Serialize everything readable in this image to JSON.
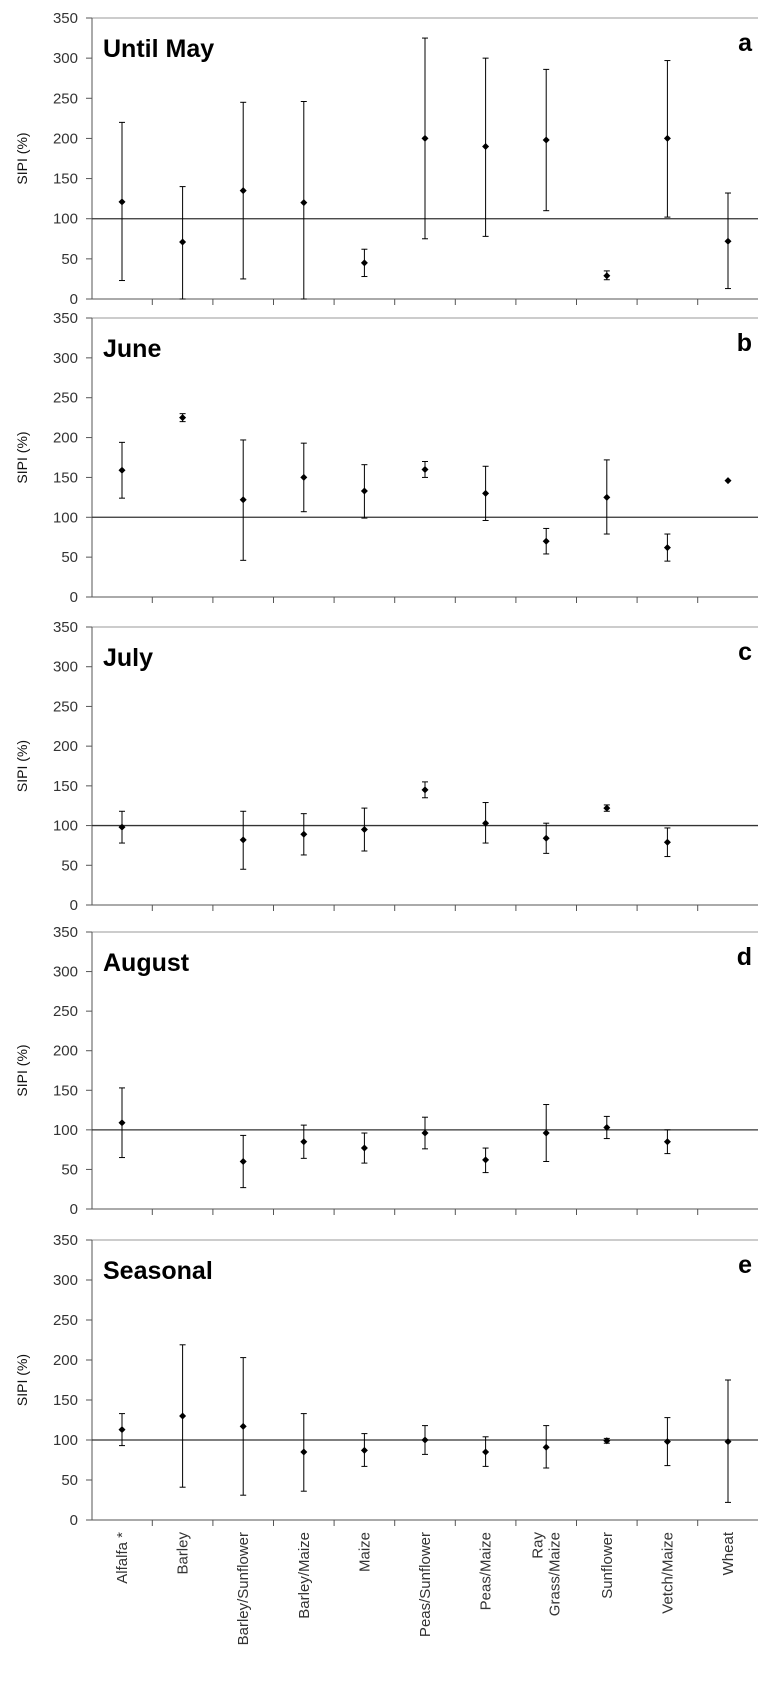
{
  "chart_data": [
    {
      "type": "scatter",
      "title": "Until May",
      "panel_label": "a",
      "ylabel": "SIPI (%)",
      "ylim": [
        0,
        350
      ],
      "yticks": [
        0,
        50,
        100,
        150,
        200,
        250,
        300,
        350
      ],
      "reference_line": 100,
      "categories": [
        "Alfalfa *",
        "Barley",
        "Barley/Sunflower",
        "Barley/Maize",
        "Maize",
        "Peas/Sunflower",
        "Peas/Maize",
        "Ray Grass/Maize",
        "Sunflower",
        "Vetch/Maize",
        "Wheat"
      ],
      "points": [
        {
          "category": "Alfalfa *",
          "value": 121,
          "low": 23,
          "high": 220
        },
        {
          "category": "Barley",
          "value": 71,
          "low": 0,
          "high": 140
        },
        {
          "category": "Barley/Sunflower",
          "value": 135,
          "low": 25,
          "high": 245
        },
        {
          "category": "Barley/Maize",
          "value": 120,
          "low": 0,
          "high": 246
        },
        {
          "category": "Maize",
          "value": 45,
          "low": 28,
          "high": 62
        },
        {
          "category": "Peas/Sunflower",
          "value": 200,
          "low": 75,
          "high": 325
        },
        {
          "category": "Peas/Maize",
          "value": 190,
          "low": 78,
          "high": 300
        },
        {
          "category": "Ray Grass/Maize",
          "value": 198,
          "low": 110,
          "high": 286
        },
        {
          "category": "Sunflower",
          "value": 29,
          "low": 24,
          "high": 35
        },
        {
          "category": "Vetch/Maize",
          "value": 200,
          "low": 102,
          "high": 297
        },
        {
          "category": "Wheat",
          "value": 72,
          "low": 13,
          "high": 132
        }
      ]
    },
    {
      "type": "scatter",
      "title": "June",
      "panel_label": "b",
      "ylabel": "SIPI (%)",
      "ylim": [
        0,
        350
      ],
      "yticks": [
        0,
        50,
        100,
        150,
        200,
        250,
        300,
        350
      ],
      "reference_line": 100,
      "categories": [
        "Alfalfa *",
        "Barley",
        "Barley/Sunflower",
        "Barley/Maize",
        "Maize",
        "Peas/Sunflower",
        "Peas/Maize",
        "Ray Grass/Maize",
        "Sunflower",
        "Vetch/Maize",
        "Wheat"
      ],
      "points": [
        {
          "category": "Alfalfa *",
          "value": 159,
          "low": 124,
          "high": 194
        },
        {
          "category": "Barley",
          "value": 225,
          "low": 220,
          "high": 230
        },
        {
          "category": "Barley/Sunflower",
          "value": 122,
          "low": 46,
          "high": 197
        },
        {
          "category": "Barley/Maize",
          "value": 150,
          "low": 107,
          "high": 193
        },
        {
          "category": "Maize",
          "value": 133,
          "low": 99,
          "high": 166
        },
        {
          "category": "Peas/Sunflower",
          "value": 160,
          "low": 150,
          "high": 170
        },
        {
          "category": "Peas/Maize",
          "value": 130,
          "low": 96,
          "high": 164
        },
        {
          "category": "Ray Grass/Maize",
          "value": 70,
          "low": 54,
          "high": 86
        },
        {
          "category": "Sunflower",
          "value": 125,
          "low": 79,
          "high": 172
        },
        {
          "category": "Vetch/Maize",
          "value": 62,
          "low": 45,
          "high": 79
        },
        {
          "category": "Wheat",
          "value": 146,
          "low": 146,
          "high": 146
        }
      ]
    },
    {
      "type": "scatter",
      "title": "July",
      "panel_label": "c",
      "ylabel": "SIPI (%)",
      "ylim": [
        0,
        350
      ],
      "yticks": [
        0,
        50,
        100,
        150,
        200,
        250,
        300,
        350
      ],
      "reference_line": 100,
      "categories": [
        "Alfalfa *",
        "Barley",
        "Barley/Sunflower",
        "Barley/Maize",
        "Maize",
        "Peas/Sunflower",
        "Peas/Maize",
        "Ray Grass/Maize",
        "Sunflower",
        "Vetch/Maize",
        "Wheat"
      ],
      "points": [
        {
          "category": "Alfalfa *",
          "value": 98,
          "low": 78,
          "high": 118
        },
        {
          "category": "Barley/Sunflower",
          "value": 82,
          "low": 45,
          "high": 118
        },
        {
          "category": "Barley/Maize",
          "value": 89,
          "low": 63,
          "high": 115
        },
        {
          "category": "Maize",
          "value": 95,
          "low": 68,
          "high": 122
        },
        {
          "category": "Peas/Sunflower",
          "value": 145,
          "low": 135,
          "high": 155
        },
        {
          "category": "Peas/Maize",
          "value": 103,
          "low": 78,
          "high": 129
        },
        {
          "category": "Ray Grass/Maize",
          "value": 84,
          "low": 65,
          "high": 103
        },
        {
          "category": "Sunflower",
          "value": 122,
          "low": 118,
          "high": 126
        },
        {
          "category": "Vetch/Maize",
          "value": 79,
          "low": 61,
          "high": 97
        }
      ]
    },
    {
      "type": "scatter",
      "title": "August",
      "panel_label": "d",
      "ylabel": "SIPI (%)",
      "ylim": [
        0,
        350
      ],
      "yticks": [
        0,
        50,
        100,
        150,
        200,
        250,
        300,
        350
      ],
      "reference_line": 100,
      "categories": [
        "Alfalfa *",
        "Barley",
        "Barley/Sunflower",
        "Barley/Maize",
        "Maize",
        "Peas/Sunflower",
        "Peas/Maize",
        "Ray Grass/Maize",
        "Sunflower",
        "Vetch/Maize",
        "Wheat"
      ],
      "points": [
        {
          "category": "Alfalfa *",
          "value": 109,
          "low": 65,
          "high": 153
        },
        {
          "category": "Barley/Sunflower",
          "value": 60,
          "low": 27,
          "high": 93
        },
        {
          "category": "Barley/Maize",
          "value": 85,
          "low": 64,
          "high": 106
        },
        {
          "category": "Maize",
          "value": 77,
          "low": 58,
          "high": 96
        },
        {
          "category": "Peas/Sunflower",
          "value": 96,
          "low": 76,
          "high": 116
        },
        {
          "category": "Peas/Maize",
          "value": 62,
          "low": 46,
          "high": 77
        },
        {
          "category": "Ray Grass/Maize",
          "value": 96,
          "low": 60,
          "high": 132
        },
        {
          "category": "Sunflower",
          "value": 103,
          "low": 89,
          "high": 117
        },
        {
          "category": "Vetch/Maize",
          "value": 85,
          "low": 70,
          "high": 100
        }
      ]
    },
    {
      "type": "scatter",
      "title": "Seasonal",
      "panel_label": "e",
      "ylabel": "SIPI (%)",
      "ylim": [
        0,
        350
      ],
      "yticks": [
        0,
        50,
        100,
        150,
        200,
        250,
        300,
        350
      ],
      "reference_line": 100,
      "categories": [
        "Alfalfa *",
        "Barley",
        "Barley/Sunflower",
        "Barley/Maize",
        "Maize",
        "Peas/Sunflower",
        "Peas/Maize",
        "Ray Grass/Maize",
        "Sunflower",
        "Vetch/Maize",
        "Wheat"
      ],
      "points": [
        {
          "category": "Alfalfa *",
          "value": 113,
          "low": 93,
          "high": 133
        },
        {
          "category": "Barley",
          "value": 130,
          "low": 41,
          "high": 219
        },
        {
          "category": "Barley/Sunflower",
          "value": 117,
          "low": 31,
          "high": 203
        },
        {
          "category": "Barley/Maize",
          "value": 85,
          "low": 36,
          "high": 133
        },
        {
          "category": "Maize",
          "value": 87,
          "low": 67,
          "high": 108
        },
        {
          "category": "Peas/Sunflower",
          "value": 100,
          "low": 82,
          "high": 118
        },
        {
          "category": "Peas/Maize",
          "value": 85,
          "low": 67,
          "high": 104
        },
        {
          "category": "Ray Grass/Maize",
          "value": 91,
          "low": 65,
          "high": 118
        },
        {
          "category": "Sunflower",
          "value": 99,
          "low": 96,
          "high": 102
        },
        {
          "category": "Vetch/Maize",
          "value": 98,
          "low": 68,
          "high": 128
        },
        {
          "category": "Wheat",
          "value": 98,
          "low": 22,
          "high": 175
        }
      ]
    }
  ],
  "x_axis": {
    "labels": [
      "Alfalfa *",
      "Barley",
      "Barley/Sunflower",
      "Barley/Maize",
      "Maize",
      "Peas/Sunflower",
      "Peas/Maize",
      "Ray Grass/Maize",
      "Sunflower",
      "Vetch/Maize",
      "Wheat"
    ]
  },
  "colors": {
    "marker": "#000000",
    "error_bar": "#000000",
    "reference_line": "#333333",
    "axis": "#555555",
    "panel_border": "#999999",
    "tick_text": "#333333"
  }
}
